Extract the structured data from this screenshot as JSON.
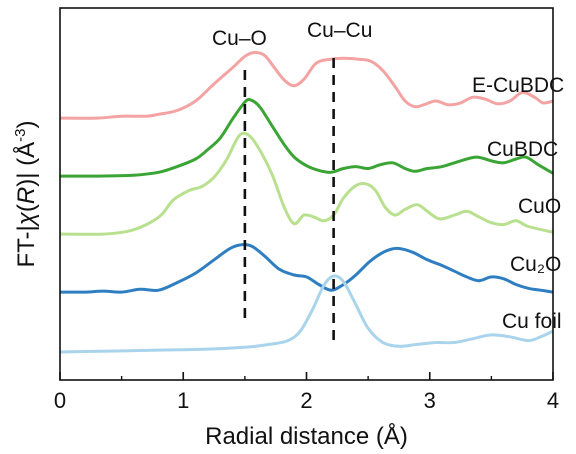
{
  "chart_data": {
    "type": "line",
    "title": "",
    "xlabel": "Radial distance (Å)",
    "ylabel_parts": {
      "prefix": "FT-|",
      "chi": "χ",
      "paren_open": "(",
      "R": "R",
      "paren_close": ")| (Å",
      "exp": "-3",
      "suffix": ")"
    },
    "xlim": [
      0,
      4
    ],
    "x_ticks": [
      "0",
      "1",
      "2",
      "3",
      "4"
    ],
    "y_ticks_shown": false,
    "reference_lines": [
      {
        "label": "Cu–O",
        "x": 1.5
      },
      {
        "label": "Cu–Cu",
        "x": 2.22
      }
    ],
    "series": [
      {
        "name": "E-CuBDC",
        "color": "#f4a3a3",
        "offset": 4,
        "points": [
          [
            0,
            0.02
          ],
          [
            0.3,
            0.02
          ],
          [
            0.5,
            0.04
          ],
          [
            0.7,
            0.04
          ],
          [
            0.8,
            0.06
          ],
          [
            0.95,
            0.1
          ],
          [
            1.1,
            0.2
          ],
          [
            1.25,
            0.38
          ],
          [
            1.4,
            0.55
          ],
          [
            1.5,
            0.67
          ],
          [
            1.58,
            0.71
          ],
          [
            1.66,
            0.68
          ],
          [
            1.74,
            0.55
          ],
          [
            1.82,
            0.42
          ],
          [
            1.9,
            0.36
          ],
          [
            1.98,
            0.43
          ],
          [
            2.08,
            0.6
          ],
          [
            2.2,
            0.64
          ],
          [
            2.3,
            0.65
          ],
          [
            2.42,
            0.64
          ],
          [
            2.52,
            0.62
          ],
          [
            2.62,
            0.52
          ],
          [
            2.72,
            0.35
          ],
          [
            2.8,
            0.2
          ],
          [
            2.88,
            0.14
          ],
          [
            2.95,
            0.16
          ],
          [
            3.05,
            0.2
          ],
          [
            3.15,
            0.16
          ],
          [
            3.25,
            0.18
          ],
          [
            3.35,
            0.24
          ],
          [
            3.45,
            0.22
          ],
          [
            3.55,
            0.17
          ],
          [
            3.65,
            0.2
          ],
          [
            3.75,
            0.29
          ],
          [
            3.85,
            0.24
          ],
          [
            3.92,
            0.18
          ],
          [
            4.0,
            0.2
          ]
        ]
      },
      {
        "name": "CuBDC",
        "color": "#3aa535",
        "offset": 3,
        "points": [
          [
            0,
            0.02
          ],
          [
            0.3,
            0.02
          ],
          [
            0.6,
            0.03
          ],
          [
            0.8,
            0.06
          ],
          [
            0.95,
            0.12
          ],
          [
            1.1,
            0.2
          ],
          [
            1.2,
            0.3
          ],
          [
            1.3,
            0.42
          ],
          [
            1.4,
            0.62
          ],
          [
            1.5,
            0.8
          ],
          [
            1.55,
            0.82
          ],
          [
            1.62,
            0.75
          ],
          [
            1.72,
            0.55
          ],
          [
            1.82,
            0.35
          ],
          [
            1.9,
            0.22
          ],
          [
            2.0,
            0.13
          ],
          [
            2.1,
            0.08
          ],
          [
            2.2,
            0.06
          ],
          [
            2.3,
            0.1
          ],
          [
            2.4,
            0.12
          ],
          [
            2.5,
            0.1
          ],
          [
            2.6,
            0.14
          ],
          [
            2.7,
            0.16
          ],
          [
            2.8,
            0.1
          ],
          [
            2.88,
            0.07
          ],
          [
            2.98,
            0.1
          ],
          [
            3.1,
            0.12
          ],
          [
            3.25,
            0.18
          ],
          [
            3.38,
            0.22
          ],
          [
            3.5,
            0.18
          ],
          [
            3.6,
            0.16
          ],
          [
            3.7,
            0.2
          ],
          [
            3.78,
            0.22
          ],
          [
            3.88,
            0.14
          ],
          [
            4.0,
            0.05
          ]
        ]
      },
      {
        "name": "CuO",
        "color": "#b9e08f",
        "offset": 2,
        "points": [
          [
            0,
            0.02
          ],
          [
            0.35,
            0.02
          ],
          [
            0.55,
            0.05
          ],
          [
            0.7,
            0.12
          ],
          [
            0.82,
            0.22
          ],
          [
            0.92,
            0.38
          ],
          [
            1.05,
            0.48
          ],
          [
            1.15,
            0.52
          ],
          [
            1.25,
            0.62
          ],
          [
            1.35,
            0.8
          ],
          [
            1.45,
            1.05
          ],
          [
            1.52,
            1.07
          ],
          [
            1.6,
            0.95
          ],
          [
            1.72,
            0.65
          ],
          [
            1.82,
            0.3
          ],
          [
            1.9,
            0.13
          ],
          [
            1.98,
            0.22
          ],
          [
            2.06,
            0.2
          ],
          [
            2.14,
            0.16
          ],
          [
            2.22,
            0.22
          ],
          [
            2.3,
            0.4
          ],
          [
            2.4,
            0.53
          ],
          [
            2.48,
            0.55
          ],
          [
            2.56,
            0.48
          ],
          [
            2.64,
            0.3
          ],
          [
            2.72,
            0.22
          ],
          [
            2.8,
            0.28
          ],
          [
            2.9,
            0.33
          ],
          [
            2.98,
            0.26
          ],
          [
            3.08,
            0.18
          ],
          [
            3.2,
            0.22
          ],
          [
            3.3,
            0.26
          ],
          [
            3.4,
            0.2
          ],
          [
            3.5,
            0.14
          ],
          [
            3.6,
            0.12
          ],
          [
            3.7,
            0.16
          ],
          [
            3.8,
            0.1
          ],
          [
            4.0,
            0.04
          ]
        ]
      },
      {
        "name": "Cu₂O",
        "color": "#2f7ec1",
        "offset": 1,
        "points": [
          [
            0,
            0.02
          ],
          [
            0.2,
            0.02
          ],
          [
            0.35,
            0.03
          ],
          [
            0.5,
            0.02
          ],
          [
            0.65,
            0.05
          ],
          [
            0.8,
            0.04
          ],
          [
            0.95,
            0.12
          ],
          [
            1.1,
            0.22
          ],
          [
            1.25,
            0.36
          ],
          [
            1.38,
            0.48
          ],
          [
            1.48,
            0.52
          ],
          [
            1.56,
            0.5
          ],
          [
            1.66,
            0.4
          ],
          [
            1.78,
            0.26
          ],
          [
            1.9,
            0.2
          ],
          [
            2.0,
            0.18
          ],
          [
            2.1,
            0.1
          ],
          [
            2.2,
            0.04
          ],
          [
            2.3,
            0.1
          ],
          [
            2.4,
            0.2
          ],
          [
            2.52,
            0.35
          ],
          [
            2.64,
            0.45
          ],
          [
            2.74,
            0.48
          ],
          [
            2.86,
            0.44
          ],
          [
            2.98,
            0.36
          ],
          [
            3.1,
            0.3
          ],
          [
            3.2,
            0.24
          ],
          [
            3.3,
            0.18
          ],
          [
            3.4,
            0.14
          ],
          [
            3.5,
            0.18
          ],
          [
            3.6,
            0.16
          ],
          [
            3.7,
            0.1
          ],
          [
            3.8,
            0.06
          ],
          [
            3.9,
            0.04
          ],
          [
            4.0,
            0.02
          ]
        ]
      },
      {
        "name": "Cu foil",
        "color": "#a9d4ec",
        "offset": 0,
        "points": [
          [
            0,
            0.0
          ],
          [
            0.4,
            0.01
          ],
          [
            0.8,
            0.02
          ],
          [
            1.2,
            0.03
          ],
          [
            1.5,
            0.05
          ],
          [
            1.7,
            0.08
          ],
          [
            1.85,
            0.12
          ],
          [
            1.95,
            0.22
          ],
          [
            2.05,
            0.45
          ],
          [
            2.14,
            0.7
          ],
          [
            2.22,
            0.8
          ],
          [
            2.3,
            0.74
          ],
          [
            2.4,
            0.5
          ],
          [
            2.5,
            0.25
          ],
          [
            2.62,
            0.1
          ],
          [
            2.75,
            0.06
          ],
          [
            2.9,
            0.08
          ],
          [
            3.05,
            0.1
          ],
          [
            3.2,
            0.1
          ],
          [
            3.35,
            0.14
          ],
          [
            3.5,
            0.18
          ],
          [
            3.65,
            0.16
          ],
          [
            3.8,
            0.12
          ],
          [
            3.9,
            0.16
          ],
          [
            4.0,
            0.22
          ]
        ]
      }
    ]
  }
}
